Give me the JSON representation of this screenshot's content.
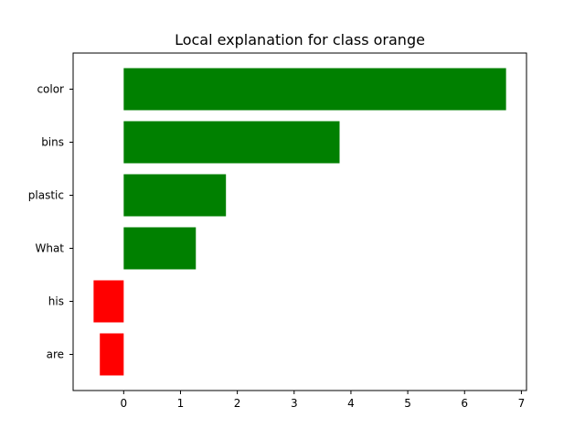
{
  "chart_data": {
    "type": "bar",
    "orientation": "horizontal",
    "title": "Local explanation for class orange",
    "xlabel": "",
    "ylabel": "",
    "categories": [
      "color",
      "bins",
      "plastic",
      "What",
      "his",
      "are"
    ],
    "values": [
      6.73,
      3.8,
      1.8,
      1.27,
      -0.53,
      -0.42
    ],
    "xlim": [
      -0.89,
      7.09
    ],
    "xticks": [
      "0",
      "1",
      "2",
      "3",
      "4",
      "5",
      "6",
      "7"
    ],
    "grid": false,
    "legend": "none",
    "colors": {
      "positive": "#008000",
      "negative": "#ff0000"
    }
  }
}
